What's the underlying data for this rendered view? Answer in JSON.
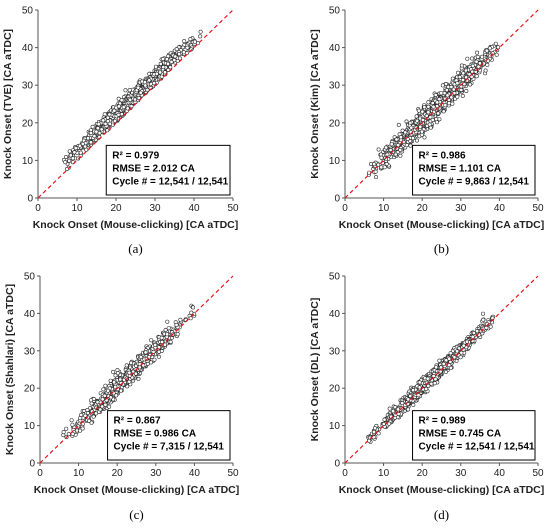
{
  "chart_data": [
    {
      "type": "scatter",
      "caption": "(a)",
      "xlabel": "Knock Onset (Mouse-clicking) [CA aTDC]",
      "ylabel": "Knock Onset (TVE) [CA aTDC]",
      "xlim": [
        0,
        50
      ],
      "ylim": [
        0,
        50
      ],
      "ticks": [
        "0",
        "10",
        "20",
        "30",
        "40",
        "50"
      ],
      "reference_line": "y = x",
      "stats": {
        "r2": "R² = 0.979",
        "rmse": "RMSE = 2.012 CA",
        "cycles": "Cycle # = 12,541 / 12,541"
      },
      "series": [
        {
          "values": {
            "x_range": [
              6,
              42
            ],
            "slope": 1.0,
            "offset": 2.4,
            "spread": 1.0,
            "density": "high"
          }
        }
      ]
    },
    {
      "type": "scatter",
      "caption": "(b)",
      "xlabel": "Knock Onset (Mouse-clicking) [CA aTDC]",
      "ylabel": "Knock Onset (Kim) [CA aTDC]",
      "xlim": [
        0,
        50
      ],
      "ylim": [
        0,
        50
      ],
      "ticks": [
        "0",
        "10",
        "20",
        "30",
        "40",
        "50"
      ],
      "reference_line": "y = x",
      "stats": {
        "r2": "R² = 0.986",
        "rmse": "RMSE = 1.101 CA",
        "cycles": "Cycle # = 9,863 / 12,541"
      },
      "series": [
        {
          "values": {
            "x_range": [
              6,
              40
            ],
            "slope": 1.0,
            "offset": 0.5,
            "spread": 1.5,
            "density": "high"
          }
        }
      ]
    },
    {
      "type": "scatter",
      "caption": "(c)",
      "xlabel": "Knock Onset (Mouse-clicking) [CA aTDC]",
      "ylabel": "Knock Onset (Shahlari) [CA aTDC]",
      "xlim": [
        0,
        50
      ],
      "ylim": [
        0,
        50
      ],
      "ticks": [
        "0",
        "10",
        "20",
        "30",
        "40",
        "50"
      ],
      "reference_line": "y = x",
      "stats": {
        "r2": "R² = 0.867",
        "rmse": "RMSE = 0.986 CA",
        "cycles": "Cycle # = 7,315 / 12,541"
      },
      "series": [
        {
          "values": {
            "x_range": [
              6,
              40
            ],
            "slope": 1.0,
            "offset": 0.5,
            "spread": 1.3,
            "density": "medium"
          }
        }
      ]
    },
    {
      "type": "scatter",
      "caption": "(d)",
      "xlabel": "Knock Onset (Mouse-clicking) [CA aTDC]",
      "ylabel": "Knock Onset (DL) [CA aTDC]",
      "xlim": [
        0,
        50
      ],
      "ylim": [
        0,
        50
      ],
      "ticks": [
        "0",
        "10",
        "20",
        "30",
        "40",
        "50"
      ],
      "reference_line": "y = x",
      "stats": {
        "r2": "R² = 0.989",
        "rmse": "RMSE = 0.745 CA",
        "cycles": "Cycle # = 12,541 / 12,541"
      },
      "series": [
        {
          "values": {
            "x_range": [
              6,
              39
            ],
            "slope": 1.0,
            "offset": 0.3,
            "spread": 0.9,
            "density": "high"
          }
        }
      ]
    }
  ],
  "colors": {
    "marker_fill": "#ffffff",
    "marker_edge": "#2a2a2a",
    "reference_line": "#e8141a",
    "axis": "#555555"
  }
}
